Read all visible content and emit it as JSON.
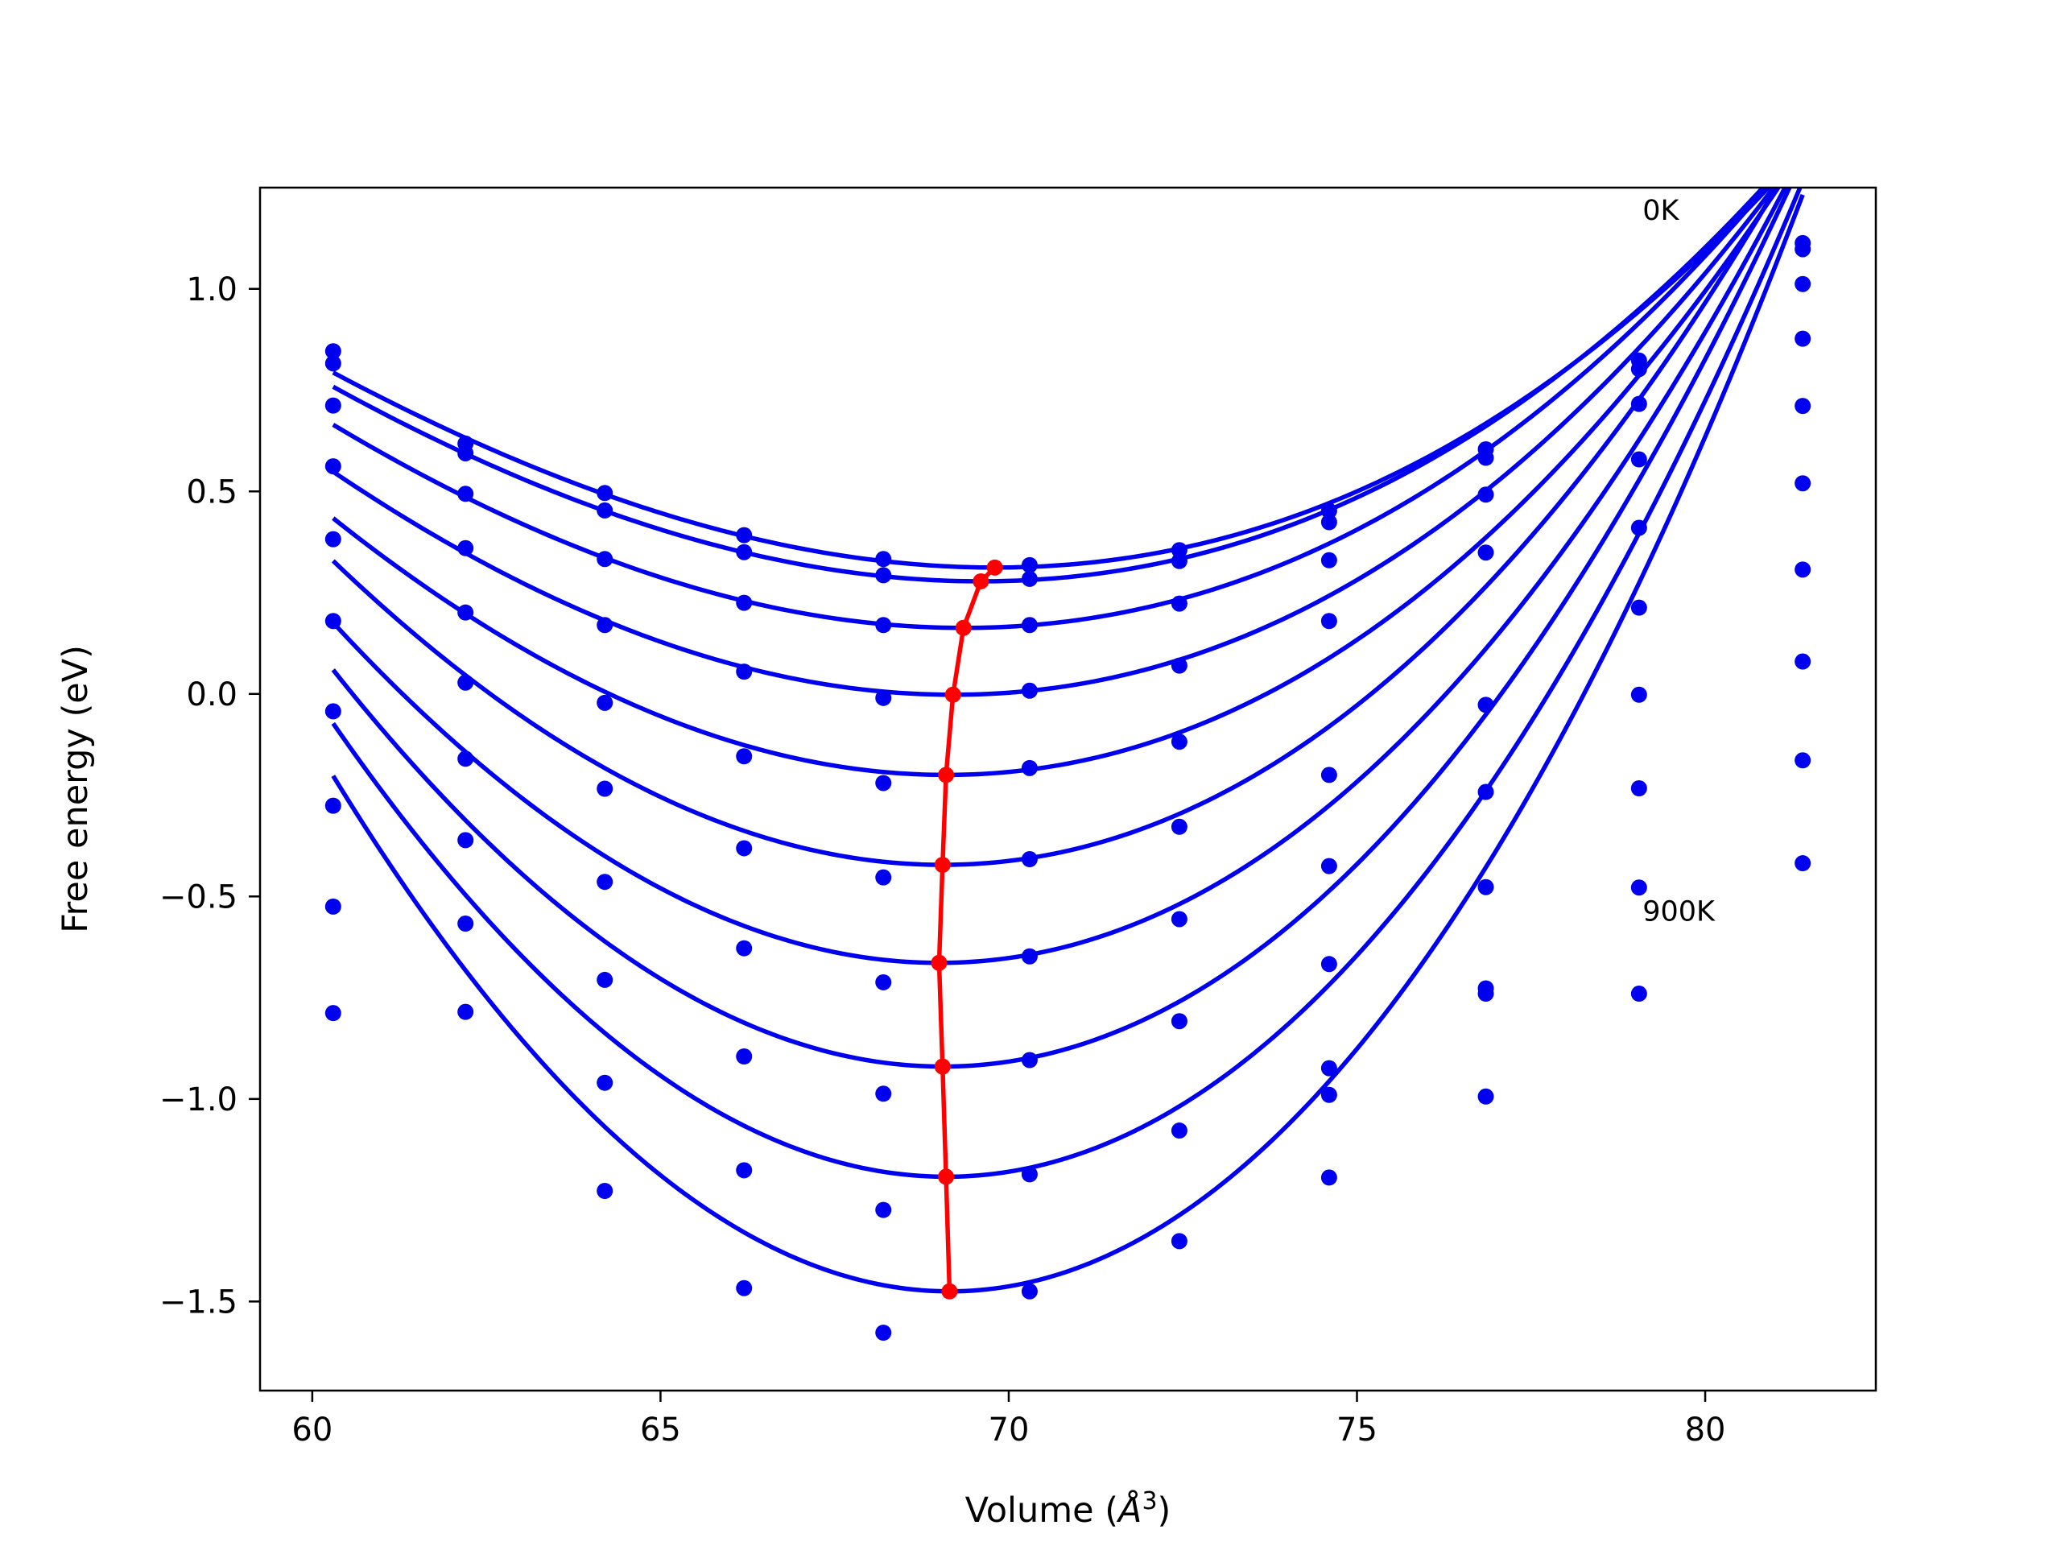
{
  "chart_data": {
    "type": "scatter",
    "title": "",
    "xlabel": "Volume ($\\AA^3$)",
    "xlabel_text": "Volume (",
    "xlabel_unit_base": "Å",
    "xlabel_unit_exp": "3",
    "xlabel_close": ")",
    "ylabel": "Free energy (eV)",
    "xlim": [
      59.25,
      82.45
    ],
    "ylim": [
      -1.72,
      1.25
    ],
    "xticks": [
      60,
      65,
      70,
      75,
      80
    ],
    "xtick_labels": [
      "60",
      "65",
      "70",
      "75",
      "80"
    ],
    "yticks": [
      -1.5,
      -1.0,
      -0.5,
      0.0,
      0.5,
      1.0
    ],
    "ytick_labels": [
      "−1.5",
      "−1.0",
      "−0.5",
      "0.0",
      "0.5",
      "1.0"
    ],
    "grid": false,
    "legend": "none",
    "annotations": [
      {
        "text": "0K",
        "x": 79.1,
        "y": 1.17
      },
      {
        "text": "900K",
        "x": 79.1,
        "y": -0.56
      }
    ],
    "colors": {
      "curves": "#0000ee",
      "minimum_path": "#ff0000",
      "frame": "#000000"
    },
    "x": [
      60.3,
      62.2,
      64.2,
      66.2,
      68.2,
      70.3,
      72.45,
      74.6,
      76.85,
      79.05,
      81.4
    ],
    "series": [
      {
        "values": [
          0.846,
          0.618,
          0.496,
          0.392,
          0.333,
          0.318,
          0.355,
          0.452,
          0.604,
          0.823,
          1.113
        ],
        "fit": {
          "v0": 69.8,
          "e0": 0.312,
          "a": 0.00638,
          "b": 0.00011
        }
      },
      {
        "values": [
          0.816,
          0.594,
          0.453,
          0.35,
          0.293,
          0.284,
          0.328,
          0.424,
          0.583,
          0.802,
          1.098
        ],
        "fit": {
          "v0": 69.6,
          "e0": 0.278,
          "a": 0.00653,
          "b": 0.000105
        }
      },
      {
        "values": [
          0.712,
          0.494,
          0.333,
          0.225,
          0.17,
          0.17,
          0.223,
          0.33,
          0.492,
          0.716,
          1.012
        ],
        "fit": {
          "v0": 69.35,
          "e0": 0.163,
          "a": 0.00703,
          "b": 0.0001
        }
      },
      {
        "values": [
          0.562,
          0.36,
          0.17,
          0.055,
          -0.01,
          0.008,
          0.07,
          0.18,
          0.349,
          0.579,
          0.877
        ],
        "fit": {
          "v0": 69.2,
          "e0": -0.002,
          "a": 0.00784,
          "b": 0.0001
        }
      },
      {
        "values": [
          0.382,
          0.201,
          -0.022,
          -0.154,
          -0.22,
          -0.183,
          -0.118,
          -0.2,
          -0.027,
          0.41,
          0.711
        ],
        "fit": {
          "v0": 69.1,
          "e0": -0.2,
          "a": 0.00902,
          "b": 9.5e-05
        }
      },
      {
        "values": [
          0.18,
          0.028,
          -0.234,
          -0.381,
          -0.453,
          -0.408,
          -0.328,
          -0.425,
          -0.242,
          0.213,
          0.52
        ],
        "fit": {
          "v0": 69.05,
          "e0": -0.422,
          "a": 0.01059,
          "b": 9e-05
        }
      },
      {
        "values": [
          -0.043,
          -0.16,
          -0.464,
          -0.628,
          -0.712,
          -0.648,
          -0.556,
          -0.667,
          -0.477,
          -0.002,
          0.307
        ],
        "fit": {
          "v0": 69.0,
          "e0": -0.664,
          "a": 0.01188,
          "b": 9e-05
        }
      },
      {
        "values": [
          -0.276,
          -0.361,
          -0.706,
          -0.895,
          -0.987,
          -0.904,
          -0.808,
          -0.924,
          -0.727,
          -0.233,
          0.08
        ],
        "fit": {
          "v0": 69.05,
          "e0": -0.92,
          "a": 0.01358,
          "b": 9e-05
        }
      },
      {
        "values": [
          -0.525,
          -0.567,
          -0.96,
          -1.176,
          -1.274,
          -1.186,
          -1.078,
          -1.194,
          -0.994,
          -0.478,
          -0.164
        ],
        "fit": {
          "v0": 69.1,
          "e0": -1.192,
          "a": 0.0152,
          "b": 8.5e-05
        }
      },
      {
        "values": [
          -0.788,
          -0.785,
          -1.227,
          -1.467,
          -1.577,
          -1.475,
          -1.351,
          -0.99,
          -0.74,
          -0.74,
          -0.418
        ],
        "fit": {
          "v0": 69.15,
          "e0": -1.475,
          "a": 0.017,
          "b": 8.5e-05
        }
      }
    ],
    "minimum_path": {
      "x": [
        69.8,
        69.6,
        69.35,
        69.2,
        69.1,
        69.05,
        69.0,
        69.05,
        69.1,
        69.15
      ],
      "y": [
        0.312,
        0.278,
        0.163,
        -0.002,
        -0.2,
        -0.422,
        -0.664,
        -0.92,
        -1.192,
        -1.475
      ]
    }
  }
}
